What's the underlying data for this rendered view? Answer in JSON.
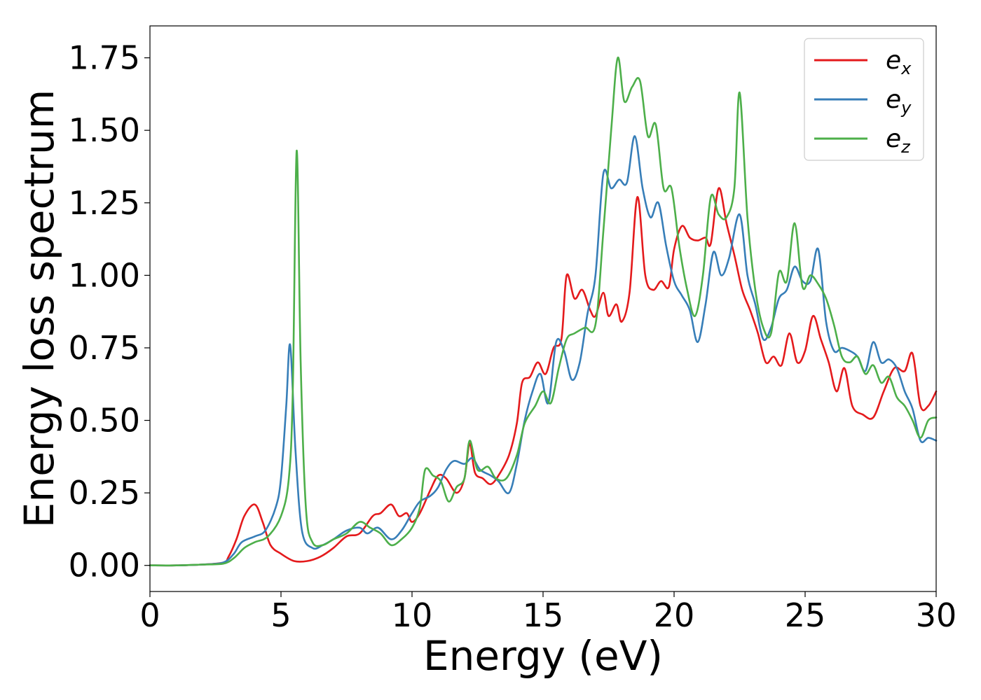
{
  "chart_data": {
    "type": "line",
    "xlabel": "Energy (eV)",
    "ylabel": "Energy loss spectrum",
    "xlim": [
      0,
      30
    ],
    "ylim": [
      -0.09,
      1.86
    ],
    "grid": false,
    "legend_position": "top-right",
    "xticks": [
      0,
      5,
      10,
      15,
      20,
      25,
      30
    ],
    "xtick_labels": [
      "0",
      "5",
      "10",
      "15",
      "20",
      "25",
      "30"
    ],
    "yticks": [
      0.0,
      0.25,
      0.5,
      0.75,
      1.0,
      1.25,
      1.5,
      1.75
    ],
    "ytick_labels": [
      "0.00",
      "0.25",
      "0.50",
      "0.75",
      "1.00",
      "1.25",
      "1.50",
      "1.75"
    ],
    "series": [
      {
        "name": "e_x",
        "legend_base": "e",
        "legend_sub": "x",
        "color": "#e41a1c",
        "points": [
          [
            0,
            0.0
          ],
          [
            1,
            0.0
          ],
          [
            2,
            0.003
          ],
          [
            2.8,
            0.01
          ],
          [
            3.0,
            0.03
          ],
          [
            3.3,
            0.09
          ],
          [
            3.6,
            0.17
          ],
          [
            4.0,
            0.21
          ],
          [
            4.3,
            0.15
          ],
          [
            4.6,
            0.07
          ],
          [
            5.0,
            0.04
          ],
          [
            5.5,
            0.015
          ],
          [
            6.0,
            0.015
          ],
          [
            6.5,
            0.03
          ],
          [
            7.0,
            0.06
          ],
          [
            7.5,
            0.1
          ],
          [
            8.0,
            0.11
          ],
          [
            8.5,
            0.17
          ],
          [
            8.8,
            0.18
          ],
          [
            9.2,
            0.21
          ],
          [
            9.5,
            0.17
          ],
          [
            9.8,
            0.18
          ],
          [
            10.0,
            0.15
          ],
          [
            10.3,
            0.18
          ],
          [
            10.7,
            0.26
          ],
          [
            11.0,
            0.31
          ],
          [
            11.3,
            0.3
          ],
          [
            11.7,
            0.25
          ],
          [
            12.0,
            0.3
          ],
          [
            12.2,
            0.42
          ],
          [
            12.4,
            0.32
          ],
          [
            12.7,
            0.3
          ],
          [
            13.0,
            0.28
          ],
          [
            13.3,
            0.31
          ],
          [
            13.7,
            0.38
          ],
          [
            14.0,
            0.49
          ],
          [
            14.2,
            0.63
          ],
          [
            14.5,
            0.65
          ],
          [
            14.8,
            0.7
          ],
          [
            15.1,
            0.66
          ],
          [
            15.4,
            0.75
          ],
          [
            15.7,
            0.78
          ],
          [
            15.9,
            1.0
          ],
          [
            16.2,
            0.92
          ],
          [
            16.5,
            0.95
          ],
          [
            16.8,
            0.88
          ],
          [
            17.0,
            0.86
          ],
          [
            17.3,
            0.94
          ],
          [
            17.5,
            0.86
          ],
          [
            17.8,
            0.9
          ],
          [
            18.0,
            0.84
          ],
          [
            18.3,
            0.94
          ],
          [
            18.6,
            1.27
          ],
          [
            18.9,
            1.0
          ],
          [
            19.2,
            0.95
          ],
          [
            19.5,
            0.98
          ],
          [
            19.8,
            0.96
          ],
          [
            20.0,
            1.09
          ],
          [
            20.3,
            1.17
          ],
          [
            20.6,
            1.13
          ],
          [
            20.9,
            1.12
          ],
          [
            21.2,
            1.13
          ],
          [
            21.4,
            1.11
          ],
          [
            21.7,
            1.3
          ],
          [
            22.0,
            1.18
          ],
          [
            22.3,
            1.07
          ],
          [
            22.6,
            0.95
          ],
          [
            22.9,
            0.88
          ],
          [
            23.2,
            0.8
          ],
          [
            23.5,
            0.7
          ],
          [
            23.8,
            0.72
          ],
          [
            24.1,
            0.69
          ],
          [
            24.4,
            0.8
          ],
          [
            24.7,
            0.7
          ],
          [
            25.0,
            0.74
          ],
          [
            25.3,
            0.86
          ],
          [
            25.6,
            0.78
          ],
          [
            25.9,
            0.7
          ],
          [
            26.2,
            0.6
          ],
          [
            26.5,
            0.68
          ],
          [
            26.8,
            0.55
          ],
          [
            27.2,
            0.52
          ],
          [
            27.6,
            0.51
          ],
          [
            28.0,
            0.6
          ],
          [
            28.4,
            0.68
          ],
          [
            28.8,
            0.67
          ],
          [
            29.1,
            0.73
          ],
          [
            29.4,
            0.55
          ],
          [
            29.7,
            0.55
          ],
          [
            30.0,
            0.6
          ]
        ]
      },
      {
        "name": "e_y",
        "legend_base": "e",
        "legend_sub": "y",
        "color": "#377eb8",
        "points": [
          [
            0,
            0.0
          ],
          [
            1,
            0.0
          ],
          [
            2,
            0.003
          ],
          [
            2.8,
            0.01
          ],
          [
            3.2,
            0.04
          ],
          [
            3.5,
            0.08
          ],
          [
            4.0,
            0.1
          ],
          [
            4.4,
            0.12
          ],
          [
            4.8,
            0.2
          ],
          [
            5.0,
            0.3
          ],
          [
            5.2,
            0.55
          ],
          [
            5.35,
            0.76
          ],
          [
            5.55,
            0.4
          ],
          [
            5.8,
            0.12
          ],
          [
            6.2,
            0.06
          ],
          [
            6.6,
            0.07
          ],
          [
            7.0,
            0.09
          ],
          [
            7.5,
            0.12
          ],
          [
            8.0,
            0.13
          ],
          [
            8.3,
            0.11
          ],
          [
            8.7,
            0.13
          ],
          [
            9.2,
            0.09
          ],
          [
            9.6,
            0.12
          ],
          [
            10.0,
            0.18
          ],
          [
            10.3,
            0.22
          ],
          [
            10.7,
            0.24
          ],
          [
            11.0,
            0.27
          ],
          [
            11.3,
            0.33
          ],
          [
            11.6,
            0.36
          ],
          [
            12.0,
            0.35
          ],
          [
            12.3,
            0.37
          ],
          [
            12.6,
            0.33
          ],
          [
            13.0,
            0.31
          ],
          [
            13.3,
            0.29
          ],
          [
            13.7,
            0.25
          ],
          [
            14.0,
            0.35
          ],
          [
            14.3,
            0.5
          ],
          [
            14.6,
            0.6
          ],
          [
            14.9,
            0.66
          ],
          [
            15.2,
            0.56
          ],
          [
            15.5,
            0.77
          ],
          [
            15.8,
            0.74
          ],
          [
            16.1,
            0.64
          ],
          [
            16.4,
            0.7
          ],
          [
            16.7,
            0.87
          ],
          [
            17.0,
            1.0
          ],
          [
            17.3,
            1.35
          ],
          [
            17.6,
            1.3
          ],
          [
            17.9,
            1.33
          ],
          [
            18.2,
            1.32
          ],
          [
            18.5,
            1.48
          ],
          [
            18.8,
            1.3
          ],
          [
            19.1,
            1.2
          ],
          [
            19.4,
            1.25
          ],
          [
            19.7,
            1.1
          ],
          [
            20.0,
            0.98
          ],
          [
            20.3,
            0.93
          ],
          [
            20.6,
            0.88
          ],
          [
            20.9,
            0.77
          ],
          [
            21.2,
            0.9
          ],
          [
            21.5,
            1.08
          ],
          [
            21.8,
            1.0
          ],
          [
            22.1,
            1.06
          ],
          [
            22.5,
            1.21
          ],
          [
            22.8,
            1.0
          ],
          [
            23.1,
            0.9
          ],
          [
            23.4,
            0.78
          ],
          [
            23.7,
            0.82
          ],
          [
            24.0,
            0.92
          ],
          [
            24.3,
            0.95
          ],
          [
            24.6,
            1.03
          ],
          [
            24.9,
            0.98
          ],
          [
            25.2,
            0.98
          ],
          [
            25.5,
            1.09
          ],
          [
            25.8,
            0.84
          ],
          [
            26.1,
            0.74
          ],
          [
            26.4,
            0.75
          ],
          [
            26.7,
            0.74
          ],
          [
            27.0,
            0.72
          ],
          [
            27.3,
            0.67
          ],
          [
            27.6,
            0.77
          ],
          [
            27.9,
            0.7
          ],
          [
            28.2,
            0.71
          ],
          [
            28.5,
            0.68
          ],
          [
            28.8,
            0.6
          ],
          [
            29.1,
            0.54
          ],
          [
            29.4,
            0.43
          ],
          [
            29.7,
            0.44
          ],
          [
            30.0,
            0.43
          ]
        ]
      },
      {
        "name": "e_z",
        "legend_base": "e",
        "legend_sub": "z",
        "color": "#4daf4a",
        "points": [
          [
            0,
            0.0
          ],
          [
            1,
            0.0
          ],
          [
            2,
            0.003
          ],
          [
            2.8,
            0.006
          ],
          [
            3.2,
            0.025
          ],
          [
            3.6,
            0.06
          ],
          [
            4.0,
            0.08
          ],
          [
            4.5,
            0.1
          ],
          [
            5.0,
            0.17
          ],
          [
            5.3,
            0.3
          ],
          [
            5.45,
            0.6
          ],
          [
            5.6,
            1.43
          ],
          [
            5.75,
            0.7
          ],
          [
            5.95,
            0.2
          ],
          [
            6.2,
            0.08
          ],
          [
            6.6,
            0.07
          ],
          [
            7.0,
            0.09
          ],
          [
            7.5,
            0.11
          ],
          [
            8.0,
            0.15
          ],
          [
            8.4,
            0.13
          ],
          [
            8.8,
            0.11
          ],
          [
            9.2,
            0.07
          ],
          [
            9.6,
            0.09
          ],
          [
            10.0,
            0.13
          ],
          [
            10.3,
            0.2
          ],
          [
            10.5,
            0.33
          ],
          [
            10.8,
            0.31
          ],
          [
            11.1,
            0.29
          ],
          [
            11.4,
            0.22
          ],
          [
            11.7,
            0.27
          ],
          [
            12.0,
            0.3
          ],
          [
            12.2,
            0.43
          ],
          [
            12.5,
            0.33
          ],
          [
            12.9,
            0.34
          ],
          [
            13.2,
            0.3
          ],
          [
            13.6,
            0.3
          ],
          [
            14.0,
            0.38
          ],
          [
            14.3,
            0.49
          ],
          [
            14.7,
            0.55
          ],
          [
            15.0,
            0.6
          ],
          [
            15.3,
            0.56
          ],
          [
            15.6,
            0.68
          ],
          [
            15.9,
            0.78
          ],
          [
            16.2,
            0.8
          ],
          [
            16.6,
            0.82
          ],
          [
            17.0,
            0.83
          ],
          [
            17.3,
            1.15
          ],
          [
            17.6,
            1.5
          ],
          [
            17.85,
            1.75
          ],
          [
            18.1,
            1.6
          ],
          [
            18.4,
            1.65
          ],
          [
            18.7,
            1.67
          ],
          [
            19.0,
            1.48
          ],
          [
            19.3,
            1.52
          ],
          [
            19.6,
            1.3
          ],
          [
            19.9,
            1.3
          ],
          [
            20.2,
            1.1
          ],
          [
            20.5,
            0.95
          ],
          [
            20.8,
            0.86
          ],
          [
            21.1,
            1.0
          ],
          [
            21.4,
            1.27
          ],
          [
            21.7,
            1.21
          ],
          [
            22.0,
            1.2
          ],
          [
            22.3,
            1.3
          ],
          [
            22.5,
            1.63
          ],
          [
            22.8,
            1.2
          ],
          [
            23.1,
            0.95
          ],
          [
            23.4,
            0.82
          ],
          [
            23.7,
            0.8
          ],
          [
            24.0,
            1.01
          ],
          [
            24.3,
            0.98
          ],
          [
            24.6,
            1.18
          ],
          [
            24.9,
            0.96
          ],
          [
            25.2,
            1.0
          ],
          [
            25.5,
            0.97
          ],
          [
            25.8,
            0.92
          ],
          [
            26.1,
            0.83
          ],
          [
            26.4,
            0.72
          ],
          [
            26.7,
            0.7
          ],
          [
            27.0,
            0.72
          ],
          [
            27.3,
            0.66
          ],
          [
            27.6,
            0.69
          ],
          [
            27.9,
            0.63
          ],
          [
            28.2,
            0.65
          ],
          [
            28.5,
            0.58
          ],
          [
            28.8,
            0.55
          ],
          [
            29.1,
            0.5
          ],
          [
            29.4,
            0.44
          ],
          [
            29.7,
            0.5
          ],
          [
            30.0,
            0.51
          ]
        ]
      }
    ]
  }
}
